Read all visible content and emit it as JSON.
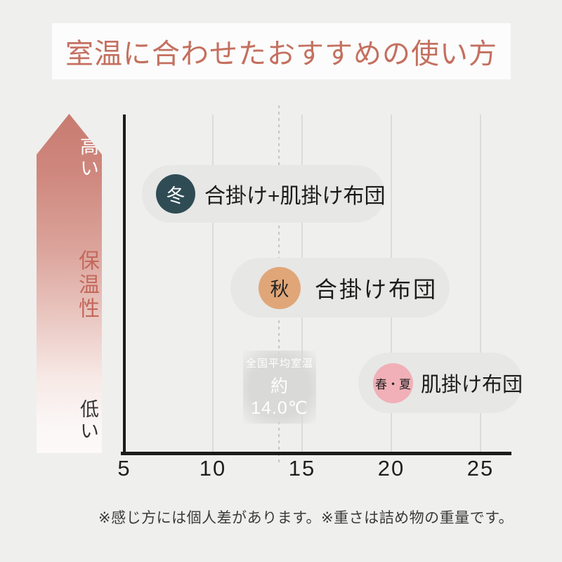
{
  "title": "室温に合わせたおすすめの使い方",
  "y_arrow": {
    "high": "高い",
    "label": "保温性",
    "low": "低い"
  },
  "axis": {
    "ticks": [
      "5",
      "10",
      "15",
      "20",
      "25"
    ]
  },
  "pills": [
    {
      "season": "冬",
      "label": "合掛け+肌掛け布団",
      "circle_color": "#2f4c55",
      "season_text_color": "#ffffff"
    },
    {
      "season": "秋",
      "label": "合掛け布団",
      "circle_color": "#e0a678",
      "season_text_color": "#222222"
    },
    {
      "season": "春・夏",
      "label": "肌掛け布団",
      "circle_color": "#f1b0b7",
      "season_text_color": "#222222"
    }
  ],
  "average_marker": {
    "line1": "全国平均室温",
    "line2": "約14.0℃"
  },
  "footnote": "※感じ方には個人差があります。※重さは詰め物の重量です。",
  "colors": {
    "background": "#efefee",
    "title_band": "#fcfcfc",
    "title_text": "#c4705f",
    "arrow_gradient_top": "#c87b70",
    "arrow_mid_text": "#c4685c",
    "pill_background": "#e7e7e6",
    "axis": "#1c1c1c",
    "gridline": "#dbdbda",
    "dashed_line": "#c6c6c5",
    "average_circle": "#d9d9d8"
  },
  "chart_data": {
    "type": "scatter",
    "title": "室温に合わせたおすすめの使い方",
    "x_ticks": [
      5,
      10,
      15,
      20,
      25
    ],
    "x_range": [
      5,
      26.7
    ],
    "grid": true,
    "y_axis": {
      "concept": "保温性",
      "high_label": "高い",
      "low_label": "低い"
    },
    "series": [
      {
        "name": "冬",
        "label": "合掛け+肌掛け布団",
        "x_start": 6.0,
        "x_end": 19.6,
        "warmth_level": "high"
      },
      {
        "name": "秋",
        "label": "合掛け布団",
        "x_start": 11.0,
        "x_end": 23.2,
        "warmth_level": "middle"
      },
      {
        "name": "春・夏",
        "label": "肌掛け布団",
        "x_start": 18.1,
        "x_end": 27.3,
        "warmth_level": "low"
      }
    ],
    "annotations": [
      {
        "text": "全国平均室温 約14.0℃",
        "x": 14.0,
        "style": "dashed-vertical-line-with-circle"
      }
    ]
  }
}
